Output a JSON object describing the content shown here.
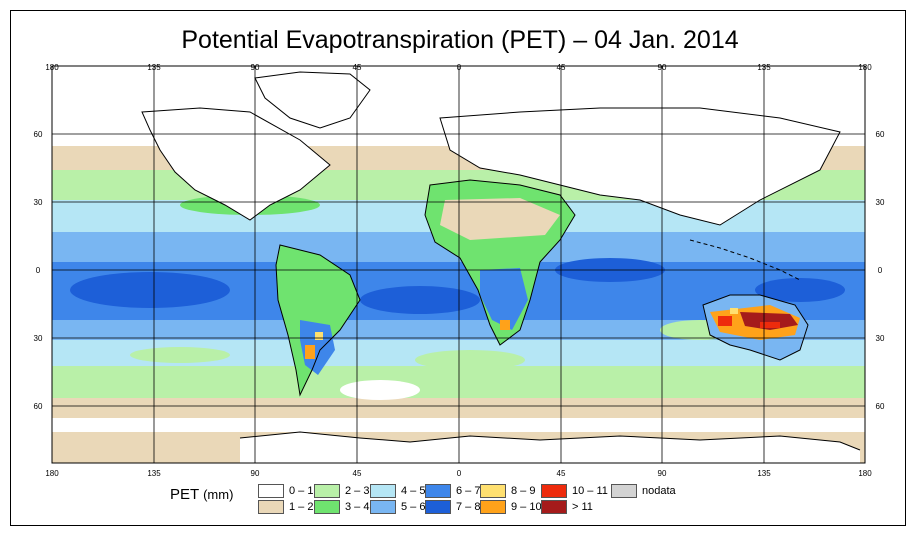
{
  "title": "Potential Evapotranspiration (PET) – 04 Jan. 2014",
  "legend": {
    "title": "PET",
    "unit": "(mm)",
    "items": [
      {
        "label": "0 – 1",
        "color": "#ffffff"
      },
      {
        "label": "1 – 2",
        "color": "#ead8b8"
      },
      {
        "label": "2 – 3",
        "color": "#b9f0a8"
      },
      {
        "label": "3 – 4",
        "color": "#6fe36f"
      },
      {
        "label": "4 – 5",
        "color": "#b5e6f5"
      },
      {
        "label": "5 – 6",
        "color": "#79b6f2"
      },
      {
        "label": "6 – 7",
        "color": "#3e86ea"
      },
      {
        "label": "7 – 8",
        "color": "#1d5fd8"
      },
      {
        "label": "8 – 9",
        "color": "#ffe070"
      },
      {
        "label": "9 – 10",
        "color": "#ffa21a"
      },
      {
        "label": "10 – 11",
        "color": "#ee2b0c"
      },
      {
        "label": "> 11",
        "color": "#a51b1b"
      },
      {
        "label": "nodata",
        "color": "#d3d3d3"
      }
    ]
  },
  "axes": {
    "x_ticks": [
      "180",
      "135",
      "90",
      "45",
      "0",
      "45",
      "90",
      "135",
      "180"
    ],
    "y_ticks": [
      "60",
      "30",
      "0",
      "30",
      "60"
    ]
  }
}
